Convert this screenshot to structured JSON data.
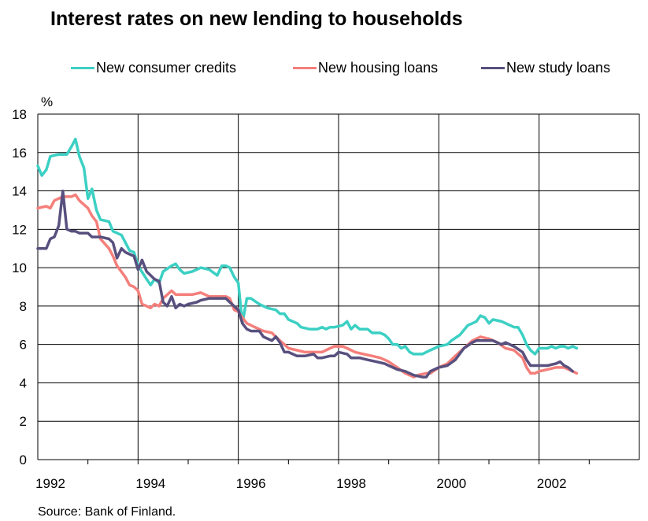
{
  "title": "Interest rates on new lending to households",
  "source": "Source: Bank of Finland.",
  "colors": {
    "consumer": "#3cd0c4",
    "housing": "#f47f7b",
    "study": "#58507e",
    "grid": "#000000"
  },
  "chart_data": {
    "type": "line",
    "title": "Interest rates on new lending to households",
    "ylabel": "%",
    "xlabel": "",
    "ylim": [
      0,
      18
    ],
    "yticks": [
      0,
      2,
      4,
      6,
      8,
      10,
      12,
      14,
      16,
      18
    ],
    "xlim": [
      1992,
      2004
    ],
    "xtick_labels": [
      "1992",
      "1994",
      "1996",
      "1998",
      "2000",
      "2002"
    ],
    "grid": true,
    "legend": "top",
    "series": [
      {
        "name": "New consumer credits",
        "color": "#3cd0c4",
        "points": [
          [
            1992.0,
            15.3
          ],
          [
            1992.08,
            14.8
          ],
          [
            1992.17,
            15.1
          ],
          [
            1992.25,
            15.8
          ],
          [
            1992.42,
            15.9
          ],
          [
            1992.58,
            15.9
          ],
          [
            1992.67,
            16.3
          ],
          [
            1992.75,
            16.7
          ],
          [
            1992.83,
            15.8
          ],
          [
            1992.92,
            15.2
          ],
          [
            1993.0,
            13.6
          ],
          [
            1993.08,
            14.1
          ],
          [
            1993.17,
            13.0
          ],
          [
            1993.25,
            12.5
          ],
          [
            1993.42,
            12.4
          ],
          [
            1993.5,
            11.9
          ],
          [
            1993.67,
            11.7
          ],
          [
            1993.75,
            11.3
          ],
          [
            1993.83,
            10.9
          ],
          [
            1993.92,
            10.8
          ],
          [
            1994.0,
            10.1
          ],
          [
            1994.17,
            9.4
          ],
          [
            1994.25,
            9.1
          ],
          [
            1994.33,
            9.4
          ],
          [
            1994.42,
            9.2
          ],
          [
            1994.5,
            9.8
          ],
          [
            1994.67,
            10.1
          ],
          [
            1994.75,
            10.2
          ],
          [
            1994.83,
            9.9
          ],
          [
            1994.92,
            9.7
          ],
          [
            1995.08,
            9.8
          ],
          [
            1995.17,
            9.9
          ],
          [
            1995.25,
            10.0
          ],
          [
            1995.42,
            9.9
          ],
          [
            1995.58,
            9.6
          ],
          [
            1995.67,
            10.1
          ],
          [
            1995.75,
            10.1
          ],
          [
            1995.83,
            10.0
          ],
          [
            1995.92,
            9.5
          ],
          [
            1996.0,
            9.2
          ],
          [
            1996.08,
            7.1
          ],
          [
            1996.17,
            8.4
          ],
          [
            1996.25,
            8.4
          ],
          [
            1996.42,
            8.1
          ],
          [
            1996.58,
            7.9
          ],
          [
            1996.75,
            7.8
          ],
          [
            1996.83,
            7.6
          ],
          [
            1996.92,
            7.6
          ],
          [
            1997.0,
            7.3
          ],
          [
            1997.17,
            7.1
          ],
          [
            1997.25,
            6.9
          ],
          [
            1997.42,
            6.8
          ],
          [
            1997.58,
            6.8
          ],
          [
            1997.67,
            6.9
          ],
          [
            1997.75,
            6.8
          ],
          [
            1997.83,
            6.9
          ],
          [
            1997.92,
            6.9
          ],
          [
            1998.08,
            7.0
          ],
          [
            1998.17,
            7.2
          ],
          [
            1998.25,
            6.8
          ],
          [
            1998.33,
            7.0
          ],
          [
            1998.42,
            6.8
          ],
          [
            1998.58,
            6.8
          ],
          [
            1998.67,
            6.6
          ],
          [
            1998.83,
            6.6
          ],
          [
            1998.92,
            6.5
          ],
          [
            1999.0,
            6.3
          ],
          [
            1999.08,
            6.0
          ],
          [
            1999.17,
            6.0
          ],
          [
            1999.25,
            5.8
          ],
          [
            1999.33,
            5.9
          ],
          [
            1999.42,
            5.6
          ],
          [
            1999.5,
            5.5
          ],
          [
            1999.67,
            5.5
          ],
          [
            1999.75,
            5.6
          ],
          [
            1999.83,
            5.7
          ],
          [
            2000.0,
            5.9
          ],
          [
            2000.17,
            6.0
          ],
          [
            2000.25,
            6.2
          ],
          [
            2000.42,
            6.5
          ],
          [
            2000.58,
            7.0
          ],
          [
            2000.67,
            7.1
          ],
          [
            2000.75,
            7.2
          ],
          [
            2000.83,
            7.5
          ],
          [
            2000.92,
            7.4
          ],
          [
            2001.0,
            7.1
          ],
          [
            2001.08,
            7.3
          ],
          [
            2001.25,
            7.2
          ],
          [
            2001.42,
            7.0
          ],
          [
            2001.5,
            6.9
          ],
          [
            2001.58,
            6.9
          ],
          [
            2001.67,
            6.5
          ],
          [
            2001.75,
            6.0
          ],
          [
            2001.83,
            5.7
          ],
          [
            2001.92,
            5.5
          ],
          [
            2002.0,
            5.8
          ],
          [
            2002.08,
            5.8
          ],
          [
            2002.17,
            5.8
          ],
          [
            2002.25,
            5.9
          ],
          [
            2002.33,
            5.8
          ],
          [
            2002.42,
            5.9
          ],
          [
            2002.5,
            5.9
          ],
          [
            2002.58,
            5.8
          ],
          [
            2002.67,
            5.9
          ],
          [
            2002.75,
            5.8
          ]
        ]
      },
      {
        "name": "New housing loans",
        "color": "#f47f7b",
        "points": [
          [
            1992.0,
            13.1
          ],
          [
            1992.17,
            13.2
          ],
          [
            1992.25,
            13.1
          ],
          [
            1992.33,
            13.5
          ],
          [
            1992.5,
            13.7
          ],
          [
            1992.67,
            13.7
          ],
          [
            1992.75,
            13.8
          ],
          [
            1992.83,
            13.5
          ],
          [
            1993.0,
            13.1
          ],
          [
            1993.08,
            12.7
          ],
          [
            1993.17,
            12.4
          ],
          [
            1993.25,
            11.5
          ],
          [
            1993.42,
            11.0
          ],
          [
            1993.5,
            10.6
          ],
          [
            1993.58,
            10.1
          ],
          [
            1993.75,
            9.5
          ],
          [
            1993.83,
            9.1
          ],
          [
            1993.92,
            9.0
          ],
          [
            1994.0,
            8.8
          ],
          [
            1994.08,
            8.1
          ],
          [
            1994.17,
            8.0
          ],
          [
            1994.25,
            7.9
          ],
          [
            1994.33,
            8.1
          ],
          [
            1994.42,
            8.0
          ],
          [
            1994.5,
            8.4
          ],
          [
            1994.67,
            8.8
          ],
          [
            1994.75,
            8.6
          ],
          [
            1994.92,
            8.6
          ],
          [
            1995.08,
            8.6
          ],
          [
            1995.25,
            8.7
          ],
          [
            1995.42,
            8.5
          ],
          [
            1995.58,
            8.5
          ],
          [
            1995.75,
            8.5
          ],
          [
            1995.83,
            8.4
          ],
          [
            1995.92,
            7.8
          ],
          [
            1996.0,
            7.7
          ],
          [
            1996.08,
            7.4
          ],
          [
            1996.17,
            7.1
          ],
          [
            1996.33,
            6.9
          ],
          [
            1996.5,
            6.7
          ],
          [
            1996.67,
            6.6
          ],
          [
            1996.83,
            6.2
          ],
          [
            1996.92,
            6.0
          ],
          [
            1997.0,
            5.8
          ],
          [
            1997.17,
            5.7
          ],
          [
            1997.33,
            5.6
          ],
          [
            1997.5,
            5.6
          ],
          [
            1997.67,
            5.6
          ],
          [
            1997.83,
            5.8
          ],
          [
            1997.92,
            5.9
          ],
          [
            1998.08,
            5.9
          ],
          [
            1998.17,
            5.8
          ],
          [
            1998.33,
            5.6
          ],
          [
            1998.5,
            5.5
          ],
          [
            1998.67,
            5.4
          ],
          [
            1998.83,
            5.3
          ],
          [
            1998.92,
            5.2
          ],
          [
            1999.0,
            5.1
          ],
          [
            1999.17,
            4.8
          ],
          [
            1999.33,
            4.5
          ],
          [
            1999.42,
            4.4
          ],
          [
            1999.5,
            4.3
          ],
          [
            1999.58,
            4.4
          ],
          [
            1999.75,
            4.5
          ],
          [
            1999.83,
            4.5
          ],
          [
            2000.0,
            4.8
          ],
          [
            2000.17,
            5.0
          ],
          [
            2000.33,
            5.4
          ],
          [
            2000.5,
            5.8
          ],
          [
            2000.67,
            6.2
          ],
          [
            2000.75,
            6.3
          ],
          [
            2000.83,
            6.4
          ],
          [
            2001.0,
            6.3
          ],
          [
            2001.17,
            6.1
          ],
          [
            2001.33,
            5.8
          ],
          [
            2001.5,
            5.7
          ],
          [
            2001.67,
            5.3
          ],
          [
            2001.75,
            4.8
          ],
          [
            2001.83,
            4.5
          ],
          [
            2001.92,
            4.5
          ],
          [
            2002.0,
            4.6
          ],
          [
            2002.17,
            4.7
          ],
          [
            2002.33,
            4.8
          ],
          [
            2002.5,
            4.8
          ],
          [
            2002.67,
            4.6
          ],
          [
            2002.75,
            4.5
          ]
        ]
      },
      {
        "name": "New study loans",
        "color": "#58507e",
        "points": [
          [
            1992.0,
            11.0
          ],
          [
            1992.17,
            11.0
          ],
          [
            1992.25,
            11.5
          ],
          [
            1992.33,
            11.6
          ],
          [
            1992.42,
            12.2
          ],
          [
            1992.5,
            14.0
          ],
          [
            1992.58,
            12.0
          ],
          [
            1992.67,
            11.9
          ],
          [
            1992.75,
            11.9
          ],
          [
            1992.83,
            11.8
          ],
          [
            1993.0,
            11.8
          ],
          [
            1993.08,
            11.6
          ],
          [
            1993.25,
            11.6
          ],
          [
            1993.42,
            11.5
          ],
          [
            1993.5,
            11.3
          ],
          [
            1993.58,
            10.5
          ],
          [
            1993.67,
            11.0
          ],
          [
            1993.75,
            10.8
          ],
          [
            1993.92,
            10.6
          ],
          [
            1994.0,
            9.9
          ],
          [
            1994.08,
            10.4
          ],
          [
            1994.17,
            9.8
          ],
          [
            1994.25,
            9.6
          ],
          [
            1994.33,
            9.4
          ],
          [
            1994.42,
            9.3
          ],
          [
            1994.5,
            8.2
          ],
          [
            1994.58,
            8.0
          ],
          [
            1994.67,
            8.5
          ],
          [
            1994.75,
            7.9
          ],
          [
            1994.83,
            8.1
          ],
          [
            1994.92,
            8.0
          ],
          [
            1995.0,
            8.1
          ],
          [
            1995.17,
            8.2
          ],
          [
            1995.25,
            8.3
          ],
          [
            1995.42,
            8.4
          ],
          [
            1995.58,
            8.4
          ],
          [
            1995.75,
            8.4
          ],
          [
            1995.83,
            8.2
          ],
          [
            1996.0,
            7.8
          ],
          [
            1996.08,
            7.1
          ],
          [
            1996.17,
            6.8
          ],
          [
            1996.25,
            6.7
          ],
          [
            1996.42,
            6.7
          ],
          [
            1996.5,
            6.4
          ],
          [
            1996.67,
            6.2
          ],
          [
            1996.75,
            6.4
          ],
          [
            1996.83,
            6.1
          ],
          [
            1996.92,
            5.6
          ],
          [
            1997.0,
            5.6
          ],
          [
            1997.17,
            5.4
          ],
          [
            1997.33,
            5.4
          ],
          [
            1997.5,
            5.5
          ],
          [
            1997.58,
            5.3
          ],
          [
            1997.67,
            5.3
          ],
          [
            1997.83,
            5.4
          ],
          [
            1997.92,
            5.4
          ],
          [
            1998.0,
            5.6
          ],
          [
            1998.17,
            5.5
          ],
          [
            1998.25,
            5.3
          ],
          [
            1998.42,
            5.3
          ],
          [
            1998.58,
            5.2
          ],
          [
            1998.75,
            5.1
          ],
          [
            1998.92,
            5.0
          ],
          [
            1999.0,
            4.9
          ],
          [
            1999.17,
            4.7
          ],
          [
            1999.33,
            4.6
          ],
          [
            1999.5,
            4.4
          ],
          [
            1999.67,
            4.3
          ],
          [
            1999.75,
            4.3
          ],
          [
            1999.83,
            4.6
          ],
          [
            2000.0,
            4.8
          ],
          [
            2000.17,
            4.9
          ],
          [
            2000.33,
            5.2
          ],
          [
            2000.5,
            5.8
          ],
          [
            2000.67,
            6.1
          ],
          [
            2000.75,
            6.2
          ],
          [
            2000.92,
            6.2
          ],
          [
            2001.08,
            6.2
          ],
          [
            2001.25,
            6.0
          ],
          [
            2001.33,
            6.1
          ],
          [
            2001.5,
            5.9
          ],
          [
            2001.67,
            5.6
          ],
          [
            2001.75,
            5.2
          ],
          [
            2001.83,
            4.9
          ],
          [
            2002.0,
            4.9
          ],
          [
            2002.17,
            4.9
          ],
          [
            2002.33,
            5.0
          ],
          [
            2002.42,
            5.1
          ],
          [
            2002.5,
            4.9
          ],
          [
            2002.58,
            4.8
          ],
          [
            2002.67,
            4.6
          ]
        ]
      }
    ]
  }
}
